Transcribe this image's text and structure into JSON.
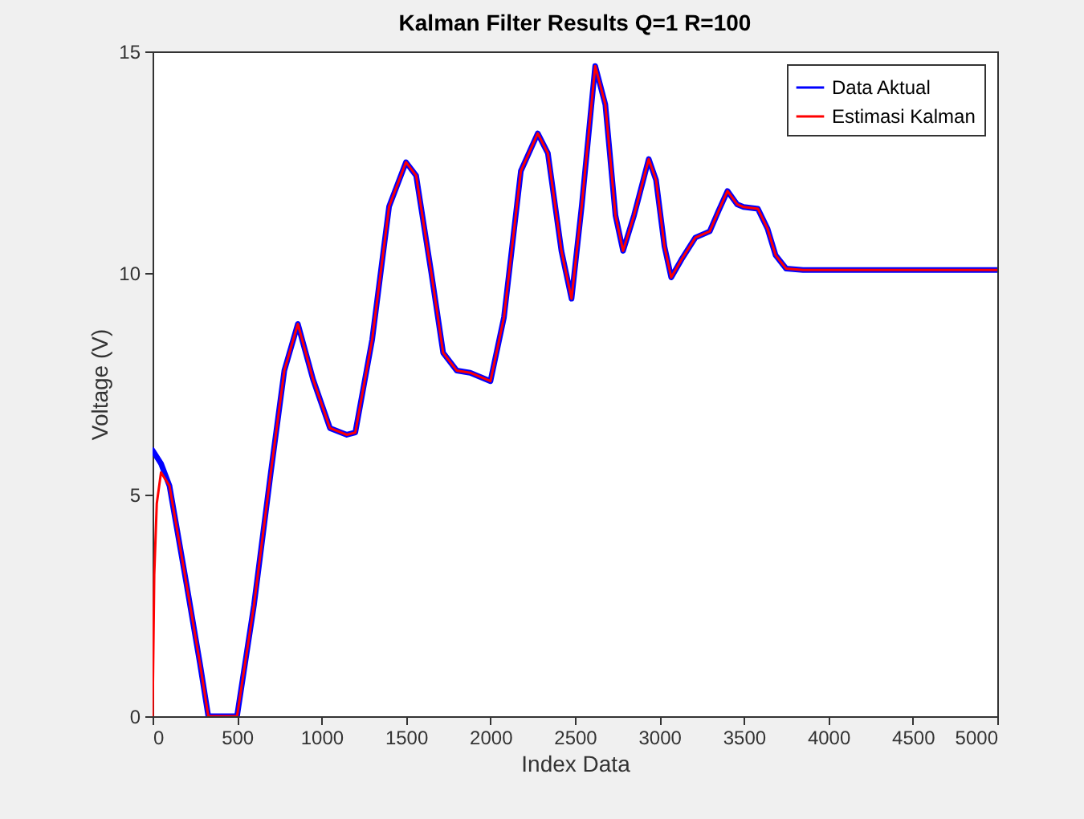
{
  "chart_data": {
    "type": "line",
    "title": "Kalman Filter Results Q=1 R=100",
    "xlabel": "Index Data",
    "ylabel": "Voltage (V)",
    "xlim": [
      0,
      5000
    ],
    "xticks": [
      0,
      500,
      1000,
      1500,
      2000,
      2500,
      3000,
      3500,
      4000,
      4500,
      5000
    ],
    "ylim": [
      0,
      15
    ],
    "yticks": [
      0,
      5,
      10,
      15
    ],
    "grid": false,
    "legend": "top right",
    "marker": "none",
    "line_style": "solid",
    "series": [
      {
        "name": "Data Aktual",
        "color": "#0000ff",
        "x": [
          0,
          50,
          100,
          200,
          280,
          330,
          500,
          600,
          700,
          780,
          860,
          950,
          1050,
          1150,
          1200,
          1300,
          1400,
          1500,
          1560,
          1650,
          1720,
          1800,
          1880,
          2000,
          2080,
          2180,
          2280,
          2340,
          2420,
          2480,
          2540,
          2620,
          2680,
          2740,
          2785,
          2850,
          2937,
          2980,
          3030,
          3070,
          3130,
          3213,
          3298,
          3350,
          3403,
          3460,
          3498,
          3583,
          3640,
          3688,
          3750,
          3850,
          5000
        ],
        "values": [
          6.0,
          5.7,
          5.2,
          3.0,
          1.2,
          0,
          0,
          2.5,
          5.5,
          7.8,
          8.85,
          7.6,
          6.5,
          6.35,
          6.4,
          8.5,
          11.5,
          12.5,
          12.2,
          10,
          8.2,
          7.8,
          7.75,
          7.56,
          9,
          12.3,
          13.15,
          12.7,
          10.5,
          9.42,
          11.5,
          14.67,
          13.8,
          11.3,
          10.5,
          11.3,
          12.57,
          12.1,
          10.6,
          9.9,
          10.3,
          10.8,
          10.94,
          11.4,
          11.85,
          11.55,
          11.49,
          11.45,
          11.0,
          10.4,
          10.1,
          10.07,
          10.07
        ]
      },
      {
        "name": "Estimasi Kalman",
        "color": "#ff0000",
        "x": [
          0,
          10,
          25,
          50,
          100,
          200,
          280,
          330,
          500,
          600,
          700,
          780,
          860,
          950,
          1050,
          1150,
          1200,
          1300,
          1400,
          1500,
          1560,
          1650,
          1720,
          1800,
          1880,
          2000,
          2080,
          2180,
          2280,
          2340,
          2420,
          2480,
          2540,
          2620,
          2680,
          2740,
          2785,
          2850,
          2937,
          2980,
          3030,
          3070,
          3130,
          3213,
          3298,
          3350,
          3403,
          3460,
          3498,
          3583,
          3640,
          3688,
          3750,
          3850,
          5000
        ],
        "values": [
          0,
          3.2,
          4.8,
          5.5,
          5.2,
          3.0,
          1.2,
          0,
          0,
          2.5,
          5.5,
          7.8,
          8.85,
          7.6,
          6.5,
          6.35,
          6.4,
          8.5,
          11.5,
          12.5,
          12.2,
          10,
          8.2,
          7.8,
          7.75,
          7.56,
          9,
          12.3,
          13.15,
          12.7,
          10.5,
          9.42,
          11.5,
          14.67,
          13.8,
          11.3,
          10.5,
          11.3,
          12.57,
          12.1,
          10.6,
          9.9,
          10.3,
          10.8,
          10.94,
          11.4,
          11.85,
          11.55,
          11.49,
          11.45,
          11.0,
          10.4,
          10.1,
          10.07,
          10.07
        ]
      }
    ]
  }
}
